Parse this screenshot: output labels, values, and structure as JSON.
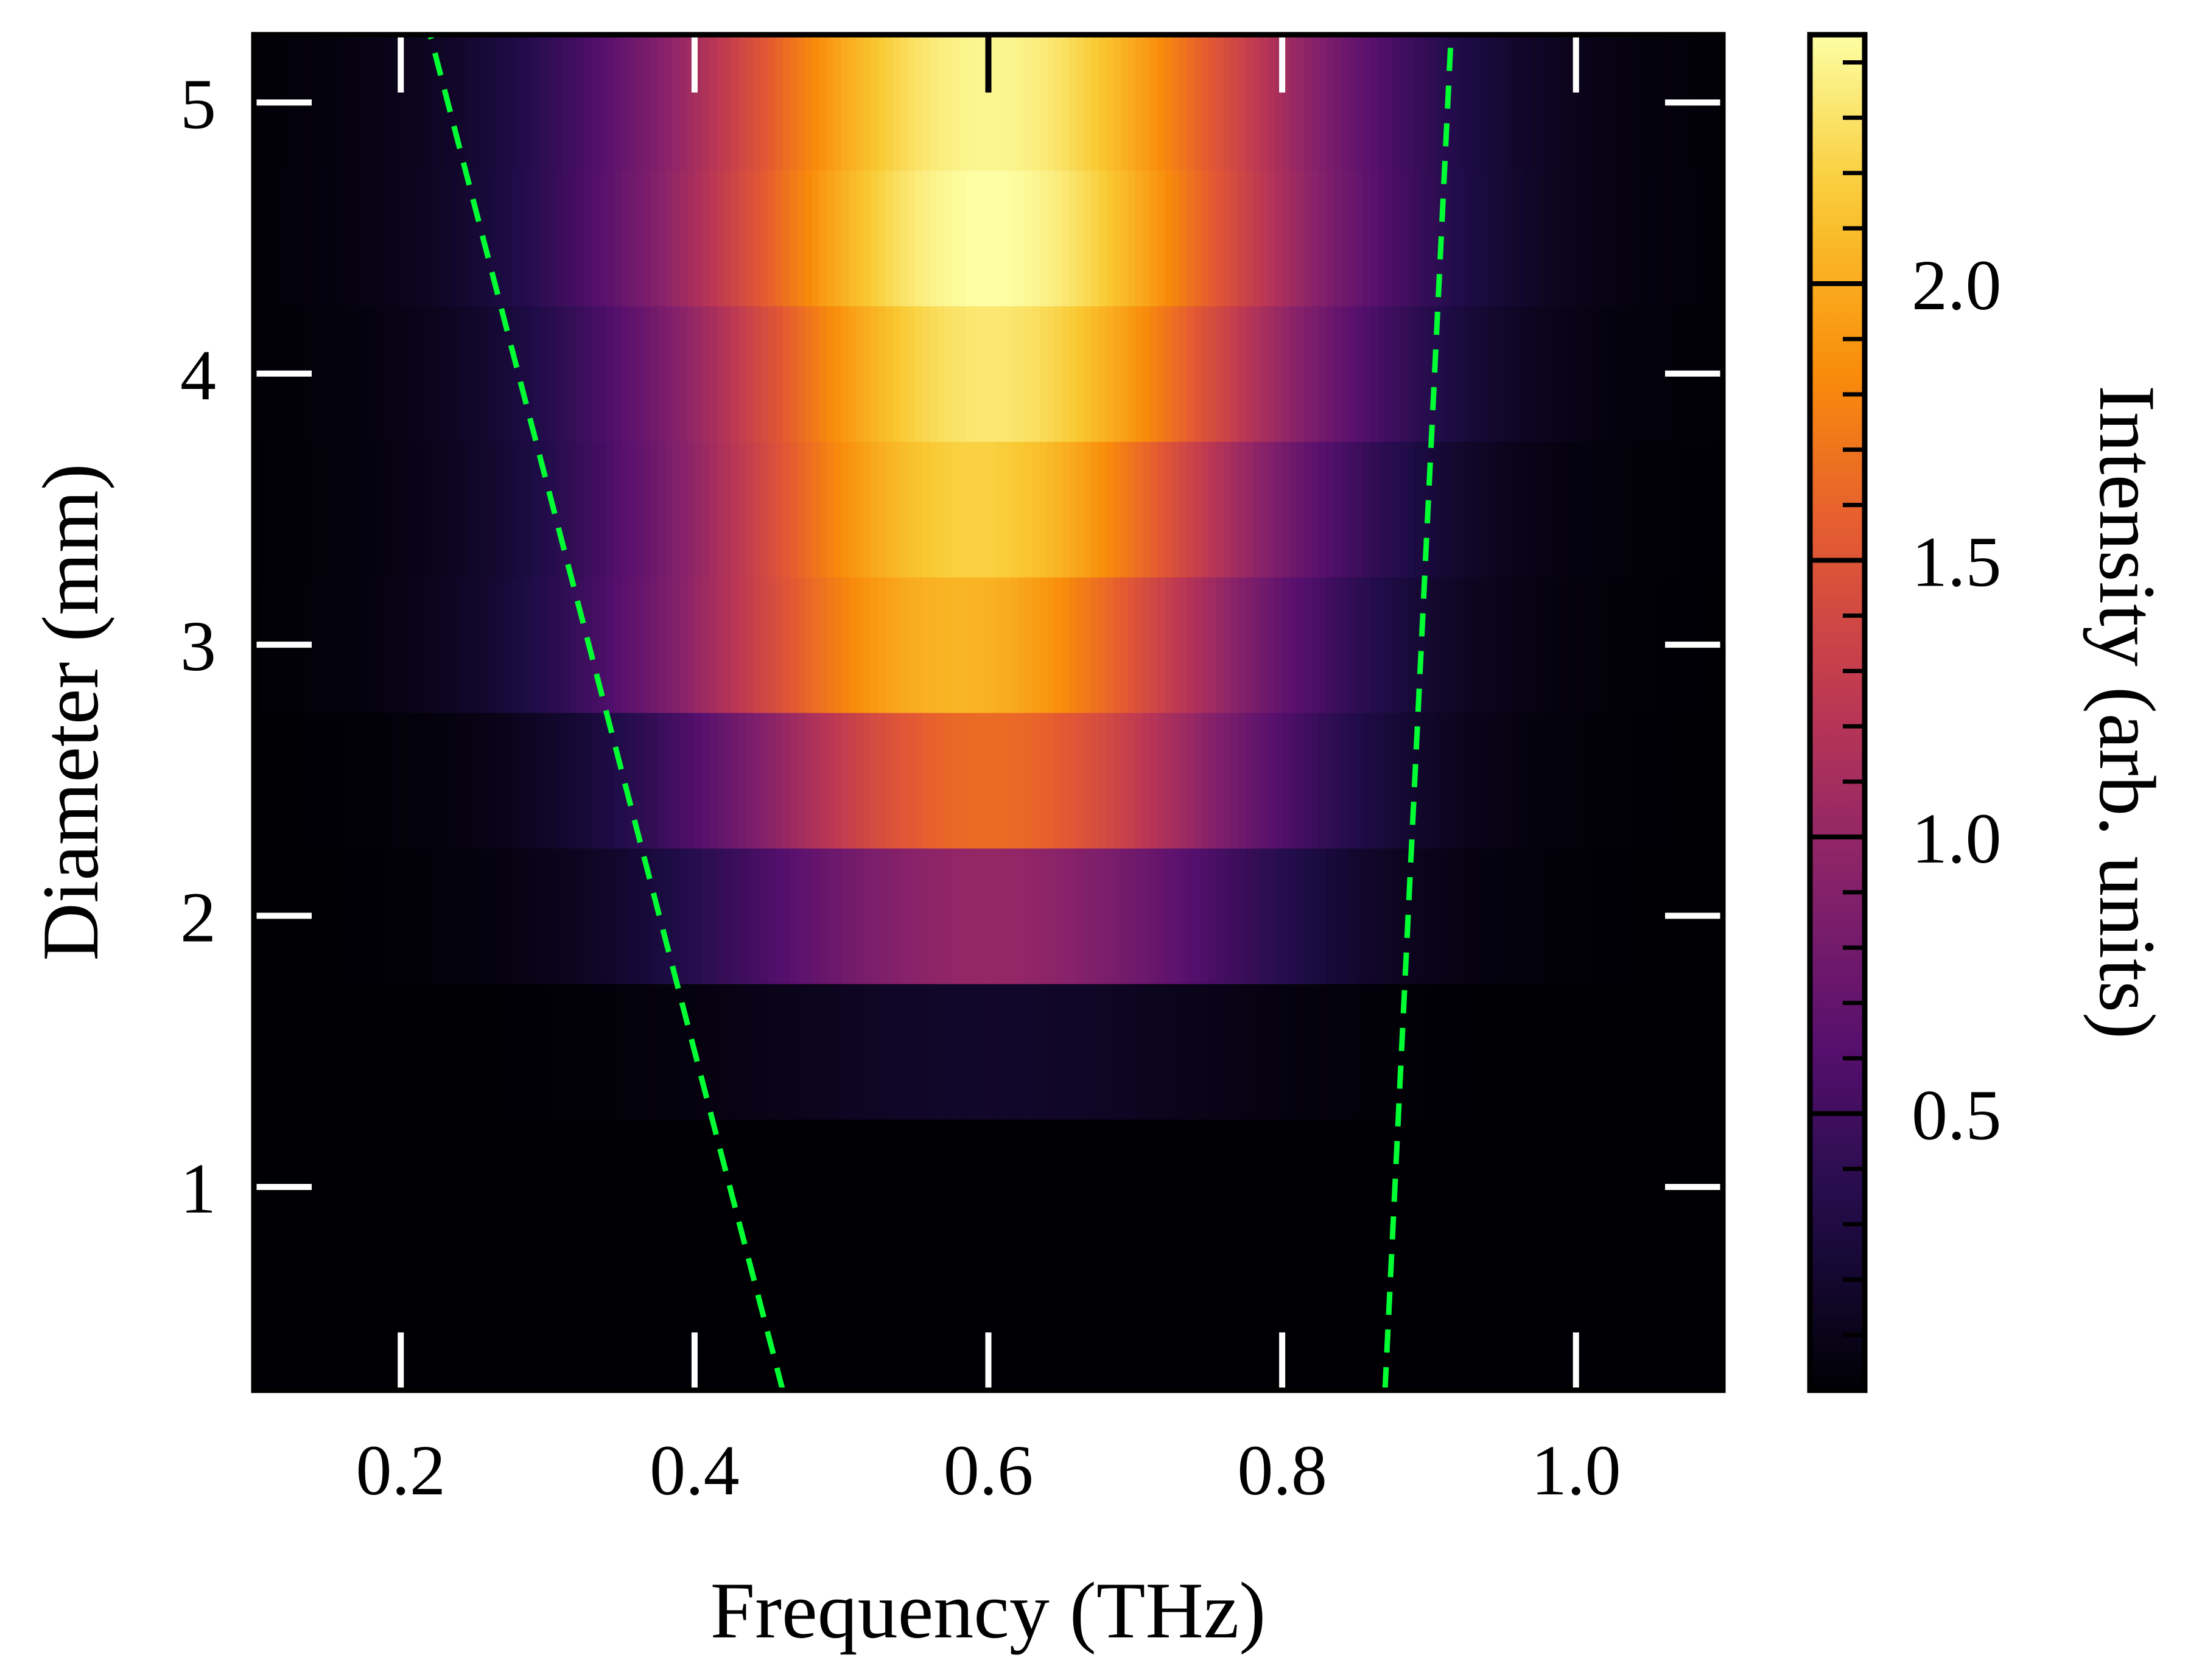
{
  "chart_data": {
    "type": "heatmap",
    "title": "",
    "xlabel": "Frequency (THz)",
    "ylabel": "Diameter (mm)",
    "colorbar_label": "Intensity (arb. units)",
    "colormap": "inferno",
    "xlim": [
      0.1,
      1.1
    ],
    "ylim": [
      0.25,
      5.25
    ],
    "clim": [
      0.0,
      2.45
    ],
    "x_ticks": [
      0.2,
      0.4,
      0.6,
      0.8,
      1.0
    ],
    "x_tick_labels": [
      "0.2",
      "0.4",
      "0.6",
      "0.8",
      "1.0"
    ],
    "y_ticks": [
      1,
      2,
      3,
      4,
      5
    ],
    "y_tick_labels": [
      "1",
      "2",
      "3",
      "4",
      "5"
    ],
    "colorbar_ticks": [
      0.5,
      1.0,
      1.5,
      2.0
    ],
    "colorbar_tick_labels": [
      "0.5",
      "1.0",
      "1.5",
      "2.0"
    ],
    "rows": [
      {
        "diameter": 0.5,
        "peak_frequency": 0.6,
        "peak_intensity": 0.0,
        "width": 0.12
      },
      {
        "diameter": 1.0,
        "peak_frequency": 0.6,
        "peak_intensity": 0.0,
        "width": 0.12
      },
      {
        "diameter": 1.5,
        "peak_frequency": 0.6,
        "peak_intensity": 0.18,
        "width": 0.13
      },
      {
        "diameter": 2.0,
        "peak_frequency": 0.6,
        "peak_intensity": 1.0,
        "width": 0.14
      },
      {
        "diameter": 2.5,
        "peak_frequency": 0.6,
        "peak_intensity": 1.65,
        "width": 0.14
      },
      {
        "diameter": 3.0,
        "peak_frequency": 0.58,
        "peak_intensity": 2.05,
        "width": 0.15
      },
      {
        "diameter": 3.5,
        "peak_frequency": 0.59,
        "peak_intensity": 2.2,
        "width": 0.15
      },
      {
        "diameter": 4.0,
        "peak_frequency": 0.6,
        "peak_intensity": 2.32,
        "width": 0.155
      },
      {
        "diameter": 4.5,
        "peak_frequency": 0.6,
        "peak_intensity": 2.45,
        "width": 0.16
      },
      {
        "diameter": 5.0,
        "peak_frequency": 0.6,
        "peak_intensity": 2.4,
        "width": 0.16
      }
    ],
    "series": [
      {
        "name": "left-boundary",
        "style": "dashed",
        "color": "#00ff33",
        "x": [
          0.46,
          0.22
        ],
        "y": [
          0.25,
          5.25
        ]
      },
      {
        "name": "right-boundary",
        "style": "dashed",
        "color": "#00ff33",
        "x": [
          0.87,
          0.915
        ],
        "y": [
          0.25,
          5.25
        ]
      }
    ]
  }
}
